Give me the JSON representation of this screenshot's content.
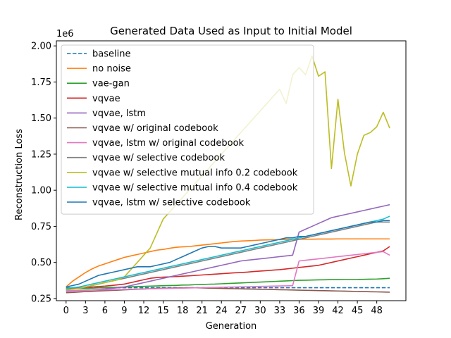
{
  "chart_data": {
    "type": "line",
    "title": "Generated Data Used as Input to Initial Model",
    "xlabel": "Generation",
    "ylabel": "Reconstruction Loss",
    "y_offset_label": "1e6",
    "xlim": [
      -1.5,
      52.5
    ],
    "ylim": [
      0.235,
      2.035
    ],
    "x_ticks": [
      0,
      3,
      6,
      9,
      12,
      15,
      18,
      21,
      24,
      27,
      30,
      33,
      36,
      39,
      42,
      45,
      48
    ],
    "x_tick_labels": [
      "0",
      "3",
      "6",
      "9",
      "12",
      "15",
      "18",
      "21",
      "24",
      "27",
      "30",
      "33",
      "36",
      "39",
      "42",
      "45",
      "48"
    ],
    "y_ticks": [
      0.25,
      0.5,
      0.75,
      1.0,
      1.25,
      1.5,
      1.75,
      2.0
    ],
    "y_tick_labels": [
      "0.25",
      "0.50",
      "0.75",
      "1.00",
      "1.25",
      "1.50",
      "1.75",
      "2.00"
    ],
    "legend_position": "upper-left",
    "series": [
      {
        "name": "baseline",
        "color": "#1f77b4",
        "dash": true,
        "values": [
          0.325,
          0.325,
          0.325,
          0.325,
          0.325,
          0.325,
          0.325,
          0.325,
          0.325,
          0.325,
          0.325,
          0.325,
          0.325,
          0.325,
          0.325,
          0.325,
          0.325,
          0.325,
          0.325,
          0.325,
          0.325,
          0.325,
          0.325,
          0.325,
          0.325,
          0.325,
          0.325,
          0.325,
          0.325,
          0.325,
          0.325,
          0.325,
          0.325,
          0.325,
          0.325,
          0.325,
          0.325,
          0.325,
          0.325,
          0.325,
          0.325,
          0.325,
          0.325,
          0.325,
          0.325,
          0.325,
          0.325,
          0.325,
          0.325,
          0.325,
          0.325
        ]
      },
      {
        "name": "no noise",
        "color": "#ff7f0e",
        "dash": false,
        "values": [
          0.33,
          0.37,
          0.4,
          0.43,
          0.455,
          0.475,
          0.49,
          0.505,
          0.52,
          0.535,
          0.545,
          0.555,
          0.565,
          0.575,
          0.585,
          0.59,
          0.598,
          0.605,
          0.608,
          0.61,
          0.615,
          0.62,
          0.625,
          0.63,
          0.635,
          0.64,
          0.645,
          0.648,
          0.65,
          0.652,
          0.655,
          0.656,
          0.657,
          0.658,
          0.659,
          0.66,
          0.66,
          0.661,
          0.661,
          0.662,
          0.662,
          0.662,
          0.663,
          0.663,
          0.663,
          0.663,
          0.663,
          0.663,
          0.663,
          0.663,
          0.663
        ]
      },
      {
        "name": "vae-gan",
        "color": "#2ca02c",
        "dash": false,
        "values": [
          0.315,
          0.317,
          0.318,
          0.32,
          0.322,
          0.324,
          0.325,
          0.327,
          0.328,
          0.33,
          0.331,
          0.333,
          0.334,
          0.336,
          0.337,
          0.339,
          0.34,
          0.341,
          0.343,
          0.344,
          0.346,
          0.347,
          0.349,
          0.35,
          0.352,
          0.354,
          0.356,
          0.358,
          0.36,
          0.362,
          0.364,
          0.366,
          0.368,
          0.37,
          0.372,
          0.374,
          0.376,
          0.377,
          0.378,
          0.379,
          0.38,
          0.381,
          0.381,
          0.382,
          0.382,
          0.382,
          0.383,
          0.384,
          0.385,
          0.387,
          0.39
        ]
      },
      {
        "name": "vqvae",
        "color": "#d62728",
        "dash": false,
        "values": [
          0.32,
          0.322,
          0.325,
          0.328,
          0.33,
          0.333,
          0.336,
          0.34,
          0.345,
          0.35,
          0.36,
          0.37,
          0.38,
          0.39,
          0.395,
          0.398,
          0.4,
          0.402,
          0.405,
          0.407,
          0.41,
          0.413,
          0.416,
          0.419,
          0.422,
          0.425,
          0.428,
          0.43,
          0.433,
          0.437,
          0.44,
          0.443,
          0.447,
          0.45,
          0.455,
          0.46,
          0.465,
          0.47,
          0.475,
          0.48,
          0.49,
          0.5,
          0.51,
          0.52,
          0.53,
          0.54,
          0.55,
          0.56,
          0.57,
          0.58,
          0.61
        ]
      },
      {
        "name": "vqvae, lstm",
        "color": "#9467bd",
        "dash": false,
        "values": [
          0.3,
          0.302,
          0.305,
          0.308,
          0.31,
          0.313,
          0.316,
          0.32,
          0.325,
          0.33,
          0.34,
          0.35,
          0.36,
          0.37,
          0.38,
          0.39,
          0.4,
          0.41,
          0.42,
          0.43,
          0.44,
          0.45,
          0.46,
          0.47,
          0.48,
          0.49,
          0.5,
          0.51,
          0.515,
          0.52,
          0.525,
          0.53,
          0.535,
          0.54,
          0.545,
          0.55,
          0.71,
          0.73,
          0.75,
          0.77,
          0.79,
          0.81,
          0.82,
          0.83,
          0.84,
          0.85,
          0.86,
          0.87,
          0.88,
          0.89,
          0.9
        ]
      },
      {
        "name": "vqvae w/ original codebook",
        "color": "#8c564b",
        "dash": false,
        "values": [
          0.29,
          0.292,
          0.295,
          0.298,
          0.3,
          0.302,
          0.304,
          0.306,
          0.308,
          0.31,
          0.312,
          0.314,
          0.316,
          0.318,
          0.32,
          0.321,
          0.322,
          0.323,
          0.324,
          0.325,
          0.324,
          0.323,
          0.322,
          0.321,
          0.32,
          0.319,
          0.318,
          0.317,
          0.316,
          0.315,
          0.314,
          0.313,
          0.312,
          0.311,
          0.31,
          0.309,
          0.308,
          0.307,
          0.306,
          0.305,
          0.304,
          0.303,
          0.302,
          0.301,
          0.3,
          0.299,
          0.298,
          0.297,
          0.296,
          0.295,
          0.294
        ]
      },
      {
        "name": "vqvae, lstm w/ original codebook",
        "color": "#e377c2",
        "dash": false,
        "values": [
          0.305,
          0.305,
          0.306,
          0.307,
          0.308,
          0.309,
          0.31,
          0.311,
          0.312,
          0.313,
          0.314,
          0.315,
          0.316,
          0.317,
          0.318,
          0.319,
          0.32,
          0.321,
          0.322,
          0.323,
          0.324,
          0.325,
          0.326,
          0.327,
          0.328,
          0.329,
          0.33,
          0.331,
          0.332,
          0.333,
          0.334,
          0.335,
          0.336,
          0.337,
          0.338,
          0.339,
          0.51,
          0.515,
          0.52,
          0.525,
          0.53,
          0.535,
          0.54,
          0.545,
          0.55,
          0.555,
          0.56,
          0.565,
          0.57,
          0.575,
          0.55
        ]
      },
      {
        "name": "vqvae w/ selective codebook",
        "color": "#7f7f7f",
        "dash": false,
        "values": [
          0.31,
          0.315,
          0.32,
          0.33,
          0.34,
          0.35,
          0.36,
          0.37,
          0.38,
          0.39,
          0.4,
          0.41,
          0.42,
          0.43,
          0.44,
          0.45,
          0.46,
          0.47,
          0.48,
          0.49,
          0.5,
          0.51,
          0.52,
          0.53,
          0.54,
          0.55,
          0.56,
          0.57,
          0.58,
          0.59,
          0.6,
          0.61,
          0.62,
          0.63,
          0.64,
          0.65,
          0.66,
          0.67,
          0.68,
          0.69,
          0.7,
          0.71,
          0.72,
          0.73,
          0.74,
          0.75,
          0.76,
          0.77,
          0.78,
          0.78,
          0.78
        ]
      },
      {
        "name": "vqvae w/ selective mutual info 0.2 codebook",
        "color": "#bcbd22",
        "dash": false,
        "values": [
          0.31,
          0.315,
          0.32,
          0.33,
          0.34,
          0.35,
          0.36,
          0.37,
          0.38,
          0.4,
          0.45,
          0.5,
          0.55,
          0.6,
          0.7,
          0.8,
          0.85,
          0.9,
          0.95,
          1.0,
          1.05,
          1.1,
          1.15,
          1.2,
          1.25,
          1.3,
          1.35,
          1.4,
          1.45,
          1.5,
          1.55,
          1.6,
          1.65,
          1.7,
          1.6,
          1.8,
          1.85,
          1.8,
          1.93,
          1.79,
          1.82,
          1.15,
          1.63,
          1.26,
          1.03,
          1.25,
          1.38,
          1.4,
          1.44,
          1.54,
          1.43
        ]
      },
      {
        "name": "vqvae w/ selective mutual info 0.4 codebook",
        "color": "#17becf",
        "dash": false,
        "values": [
          0.32,
          0.325,
          0.33,
          0.34,
          0.35,
          0.36,
          0.37,
          0.38,
          0.39,
          0.4,
          0.41,
          0.42,
          0.43,
          0.44,
          0.45,
          0.46,
          0.47,
          0.48,
          0.49,
          0.5,
          0.51,
          0.52,
          0.53,
          0.54,
          0.55,
          0.56,
          0.57,
          0.58,
          0.59,
          0.6,
          0.61,
          0.62,
          0.63,
          0.64,
          0.65,
          0.66,
          0.67,
          0.68,
          0.69,
          0.7,
          0.71,
          0.72,
          0.73,
          0.74,
          0.75,
          0.76,
          0.77,
          0.78,
          0.79,
          0.8,
          0.82
        ]
      },
      {
        "name": "vqvae, lstm w/ selective codebook",
        "color": "#1f77b4",
        "dash": false,
        "values": [
          0.33,
          0.34,
          0.35,
          0.37,
          0.39,
          0.41,
          0.42,
          0.43,
          0.44,
          0.45,
          0.46,
          0.47,
          0.47,
          0.47,
          0.48,
          0.49,
          0.5,
          0.52,
          0.54,
          0.56,
          0.58,
          0.6,
          0.61,
          0.61,
          0.6,
          0.6,
          0.6,
          0.6,
          0.61,
          0.62,
          0.63,
          0.64,
          0.65,
          0.66,
          0.67,
          0.67,
          0.68,
          0.68,
          0.69,
          0.7,
          0.71,
          0.72,
          0.73,
          0.74,
          0.75,
          0.76,
          0.77,
          0.78,
          0.78,
          0.79,
          0.79
        ]
      }
    ]
  }
}
